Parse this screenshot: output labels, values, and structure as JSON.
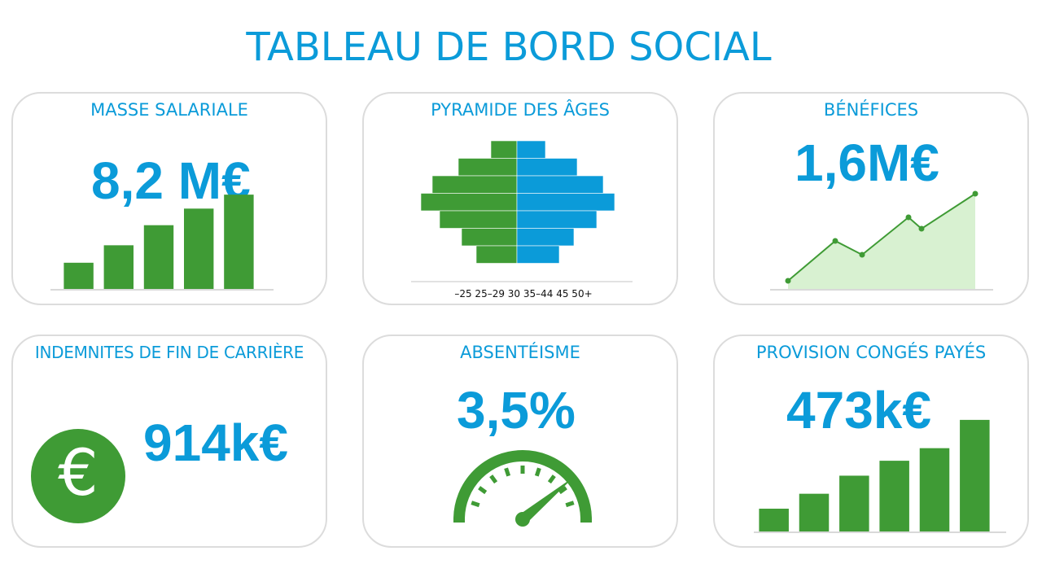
{
  "page": {
    "title": "TABLEAU DE BORD SOCIAL"
  },
  "colors": {
    "accent_blue": "#0b9bd9",
    "green": "#3f9b35",
    "area_green": "#d8f1d1",
    "card_border": "#dcdcdc"
  },
  "cards": {
    "masse_salariale": {
      "title": "MASSE SALARIALE",
      "value": "8,2 M€"
    },
    "pyramide": {
      "title": "PYRAMIDE DES ÂGES"
    },
    "benefices": {
      "title": "BÉNÉFICES",
      "value": "1,6M€"
    },
    "indemnites": {
      "title": "INDEMNITES DE FIN DE CARRIÈRE",
      "value": "914k€",
      "icon": "euro-coin-icon",
      "icon_glyph": "€"
    },
    "absenteisme": {
      "title": "ABSENTÉISME",
      "value": "3,5%",
      "icon": "speedometer-icon"
    },
    "provision": {
      "title": "PROVISION CONGÉS PAYÉS",
      "value": "473k€"
    }
  },
  "chart_data": [
    {
      "id": "masse_salariale",
      "type": "bar",
      "categories": [
        "1",
        "2",
        "3",
        "4",
        "5"
      ],
      "values": [
        30,
        50,
        73,
        92,
        108
      ],
      "ylim": [
        0,
        110
      ],
      "grid": false
    },
    {
      "id": "pyramide",
      "type": "bar",
      "orientation": "horizontal",
      "tick_labels": "–25 25–29 30 35–44 45 50+",
      "series": [
        {
          "values": [
            32,
            72,
            104,
            118,
            95,
            68,
            50
          ]
        },
        {
          "values": [
            35,
            74,
            106,
            120,
            98,
            70,
            52
          ]
        }
      ],
      "ylim": [
        0,
        120
      ]
    },
    {
      "id": "benefices",
      "type": "area",
      "x": [
        0,
        1,
        2,
        3,
        4,
        5
      ],
      "values": [
        10,
        59,
        42,
        88,
        74,
        117
      ],
      "ylim": [
        0,
        120
      ],
      "grid": false
    },
    {
      "id": "absenteisme",
      "type": "gauge",
      "value": 0.78
    },
    {
      "id": "provision",
      "type": "bar",
      "categories": [
        "1",
        "2",
        "3",
        "4",
        "5",
        "6"
      ],
      "values": [
        29,
        48,
        71,
        90,
        106,
        142
      ],
      "ylim": [
        0,
        145
      ],
      "grid": false
    }
  ]
}
